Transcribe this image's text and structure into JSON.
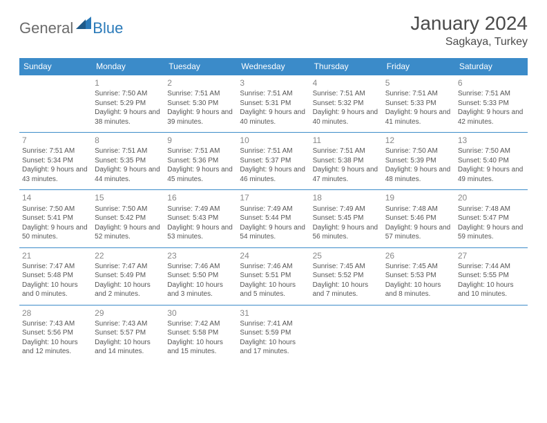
{
  "brand": {
    "part1": "General",
    "part2": "Blue"
  },
  "title": "January 2024",
  "location": "Sagkaya, Turkey",
  "colors": {
    "header_bg": "#3b8bc9",
    "header_text": "#ffffff",
    "cell_border": "#3b8bc9",
    "body_text": "#555555",
    "daynum": "#888888",
    "brand_gray": "#6b6b6b",
    "brand_blue": "#2a7ab9"
  },
  "weekdays": [
    "Sunday",
    "Monday",
    "Tuesday",
    "Wednesday",
    "Thursday",
    "Friday",
    "Saturday"
  ],
  "weeks": [
    [
      null,
      {
        "n": "1",
        "sr": "7:50 AM",
        "ss": "5:29 PM",
        "dl": "9 hours and 38 minutes."
      },
      {
        "n": "2",
        "sr": "7:51 AM",
        "ss": "5:30 PM",
        "dl": "9 hours and 39 minutes."
      },
      {
        "n": "3",
        "sr": "7:51 AM",
        "ss": "5:31 PM",
        "dl": "9 hours and 40 minutes."
      },
      {
        "n": "4",
        "sr": "7:51 AM",
        "ss": "5:32 PM",
        "dl": "9 hours and 40 minutes."
      },
      {
        "n": "5",
        "sr": "7:51 AM",
        "ss": "5:33 PM",
        "dl": "9 hours and 41 minutes."
      },
      {
        "n": "6",
        "sr": "7:51 AM",
        "ss": "5:33 PM",
        "dl": "9 hours and 42 minutes."
      }
    ],
    [
      {
        "n": "7",
        "sr": "7:51 AM",
        "ss": "5:34 PM",
        "dl": "9 hours and 43 minutes."
      },
      {
        "n": "8",
        "sr": "7:51 AM",
        "ss": "5:35 PM",
        "dl": "9 hours and 44 minutes."
      },
      {
        "n": "9",
        "sr": "7:51 AM",
        "ss": "5:36 PM",
        "dl": "9 hours and 45 minutes."
      },
      {
        "n": "10",
        "sr": "7:51 AM",
        "ss": "5:37 PM",
        "dl": "9 hours and 46 minutes."
      },
      {
        "n": "11",
        "sr": "7:51 AM",
        "ss": "5:38 PM",
        "dl": "9 hours and 47 minutes."
      },
      {
        "n": "12",
        "sr": "7:50 AM",
        "ss": "5:39 PM",
        "dl": "9 hours and 48 minutes."
      },
      {
        "n": "13",
        "sr": "7:50 AM",
        "ss": "5:40 PM",
        "dl": "9 hours and 49 minutes."
      }
    ],
    [
      {
        "n": "14",
        "sr": "7:50 AM",
        "ss": "5:41 PM",
        "dl": "9 hours and 50 minutes."
      },
      {
        "n": "15",
        "sr": "7:50 AM",
        "ss": "5:42 PM",
        "dl": "9 hours and 52 minutes."
      },
      {
        "n": "16",
        "sr": "7:49 AM",
        "ss": "5:43 PM",
        "dl": "9 hours and 53 minutes."
      },
      {
        "n": "17",
        "sr": "7:49 AM",
        "ss": "5:44 PM",
        "dl": "9 hours and 54 minutes."
      },
      {
        "n": "18",
        "sr": "7:49 AM",
        "ss": "5:45 PM",
        "dl": "9 hours and 56 minutes."
      },
      {
        "n": "19",
        "sr": "7:48 AM",
        "ss": "5:46 PM",
        "dl": "9 hours and 57 minutes."
      },
      {
        "n": "20",
        "sr": "7:48 AM",
        "ss": "5:47 PM",
        "dl": "9 hours and 59 minutes."
      }
    ],
    [
      {
        "n": "21",
        "sr": "7:47 AM",
        "ss": "5:48 PM",
        "dl": "10 hours and 0 minutes."
      },
      {
        "n": "22",
        "sr": "7:47 AM",
        "ss": "5:49 PM",
        "dl": "10 hours and 2 minutes."
      },
      {
        "n": "23",
        "sr": "7:46 AM",
        "ss": "5:50 PM",
        "dl": "10 hours and 3 minutes."
      },
      {
        "n": "24",
        "sr": "7:46 AM",
        "ss": "5:51 PM",
        "dl": "10 hours and 5 minutes."
      },
      {
        "n": "25",
        "sr": "7:45 AM",
        "ss": "5:52 PM",
        "dl": "10 hours and 7 minutes."
      },
      {
        "n": "26",
        "sr": "7:45 AM",
        "ss": "5:53 PM",
        "dl": "10 hours and 8 minutes."
      },
      {
        "n": "27",
        "sr": "7:44 AM",
        "ss": "5:55 PM",
        "dl": "10 hours and 10 minutes."
      }
    ],
    [
      {
        "n": "28",
        "sr": "7:43 AM",
        "ss": "5:56 PM",
        "dl": "10 hours and 12 minutes."
      },
      {
        "n": "29",
        "sr": "7:43 AM",
        "ss": "5:57 PM",
        "dl": "10 hours and 14 minutes."
      },
      {
        "n": "30",
        "sr": "7:42 AM",
        "ss": "5:58 PM",
        "dl": "10 hours and 15 minutes."
      },
      {
        "n": "31",
        "sr": "7:41 AM",
        "ss": "5:59 PM",
        "dl": "10 hours and 17 minutes."
      },
      null,
      null,
      null
    ]
  ],
  "labels": {
    "sunrise": "Sunrise: ",
    "sunset": "Sunset: ",
    "daylight": "Daylight: "
  }
}
